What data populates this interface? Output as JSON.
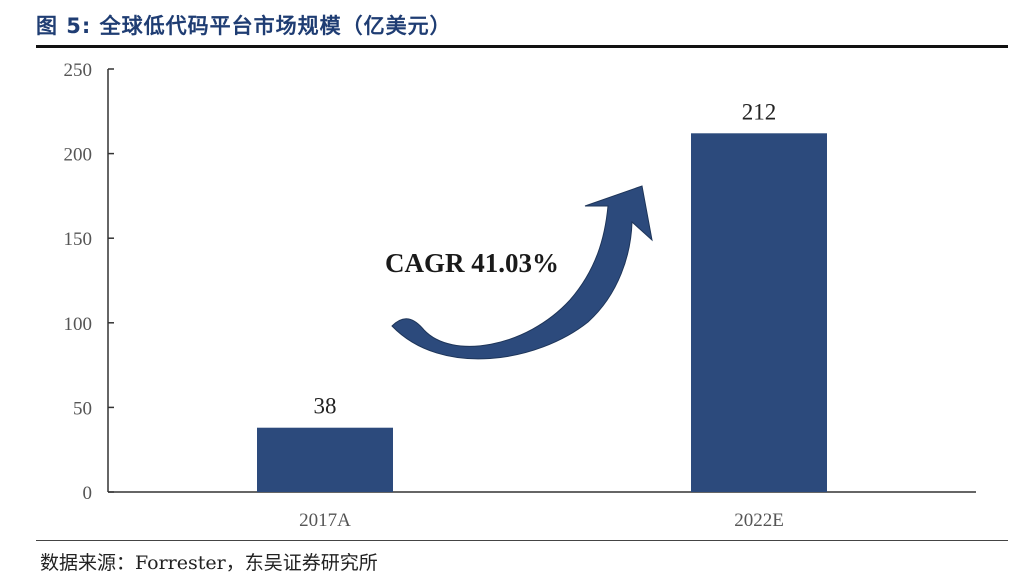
{
  "figure": {
    "title": "图 5:  全球低代码平台市场规模（亿美元）",
    "source": "数据来源：Forrester，东吴证券研究所"
  },
  "colors": {
    "title": "#1f3d73",
    "bar": "#2c4a7c",
    "arrow": "#2c4a7c"
  },
  "chart_data": {
    "type": "bar",
    "categories": [
      "2017A",
      "2022E"
    ],
    "values": [
      38,
      212
    ],
    "data_labels": [
      "38",
      "212"
    ],
    "ylim": [
      0,
      250
    ],
    "yticks": [
      0,
      50,
      100,
      150,
      200,
      250
    ],
    "grid": false,
    "legend": "none",
    "annotation": {
      "text": "CAGR 41.03%",
      "arrow_icon": "curved-up-arrow-icon"
    }
  }
}
